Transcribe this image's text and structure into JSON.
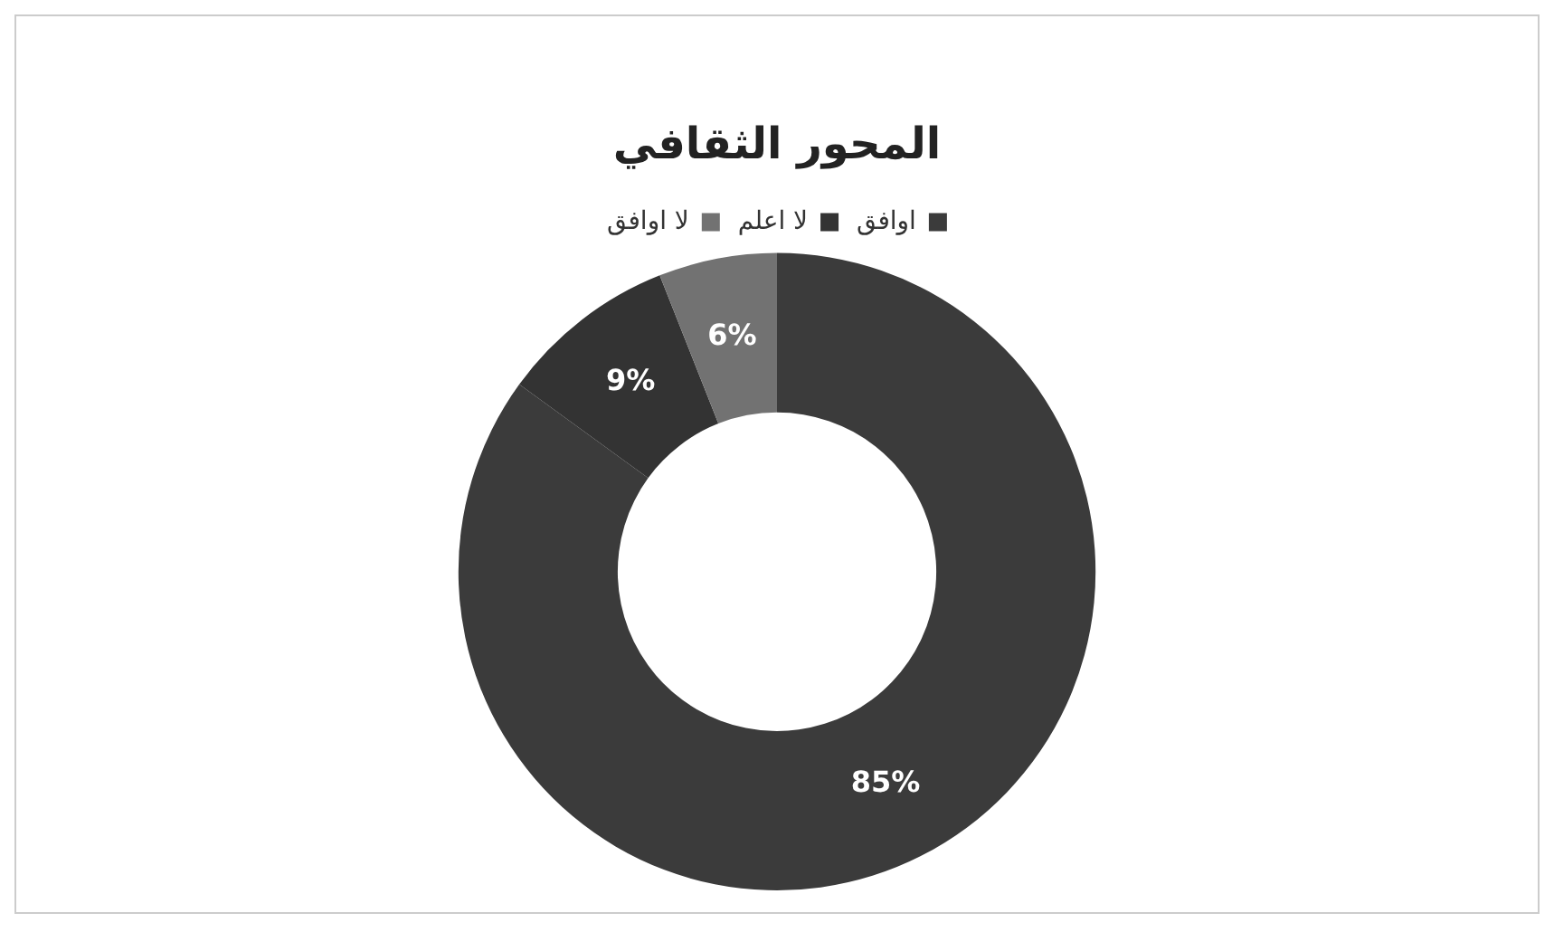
{
  "chart_data": {
    "type": "donut",
    "title": "المحور الثقافي",
    "categories": [
      "اوافق",
      "لا اعلم",
      "لا اوافق"
    ],
    "values": [
      85,
      9,
      6
    ],
    "colors": [
      "#3b3b3b",
      "#333333",
      "#727272"
    ],
    "value_labels": [
      "85%",
      "9%",
      "6%"
    ],
    "legend": "top"
  }
}
